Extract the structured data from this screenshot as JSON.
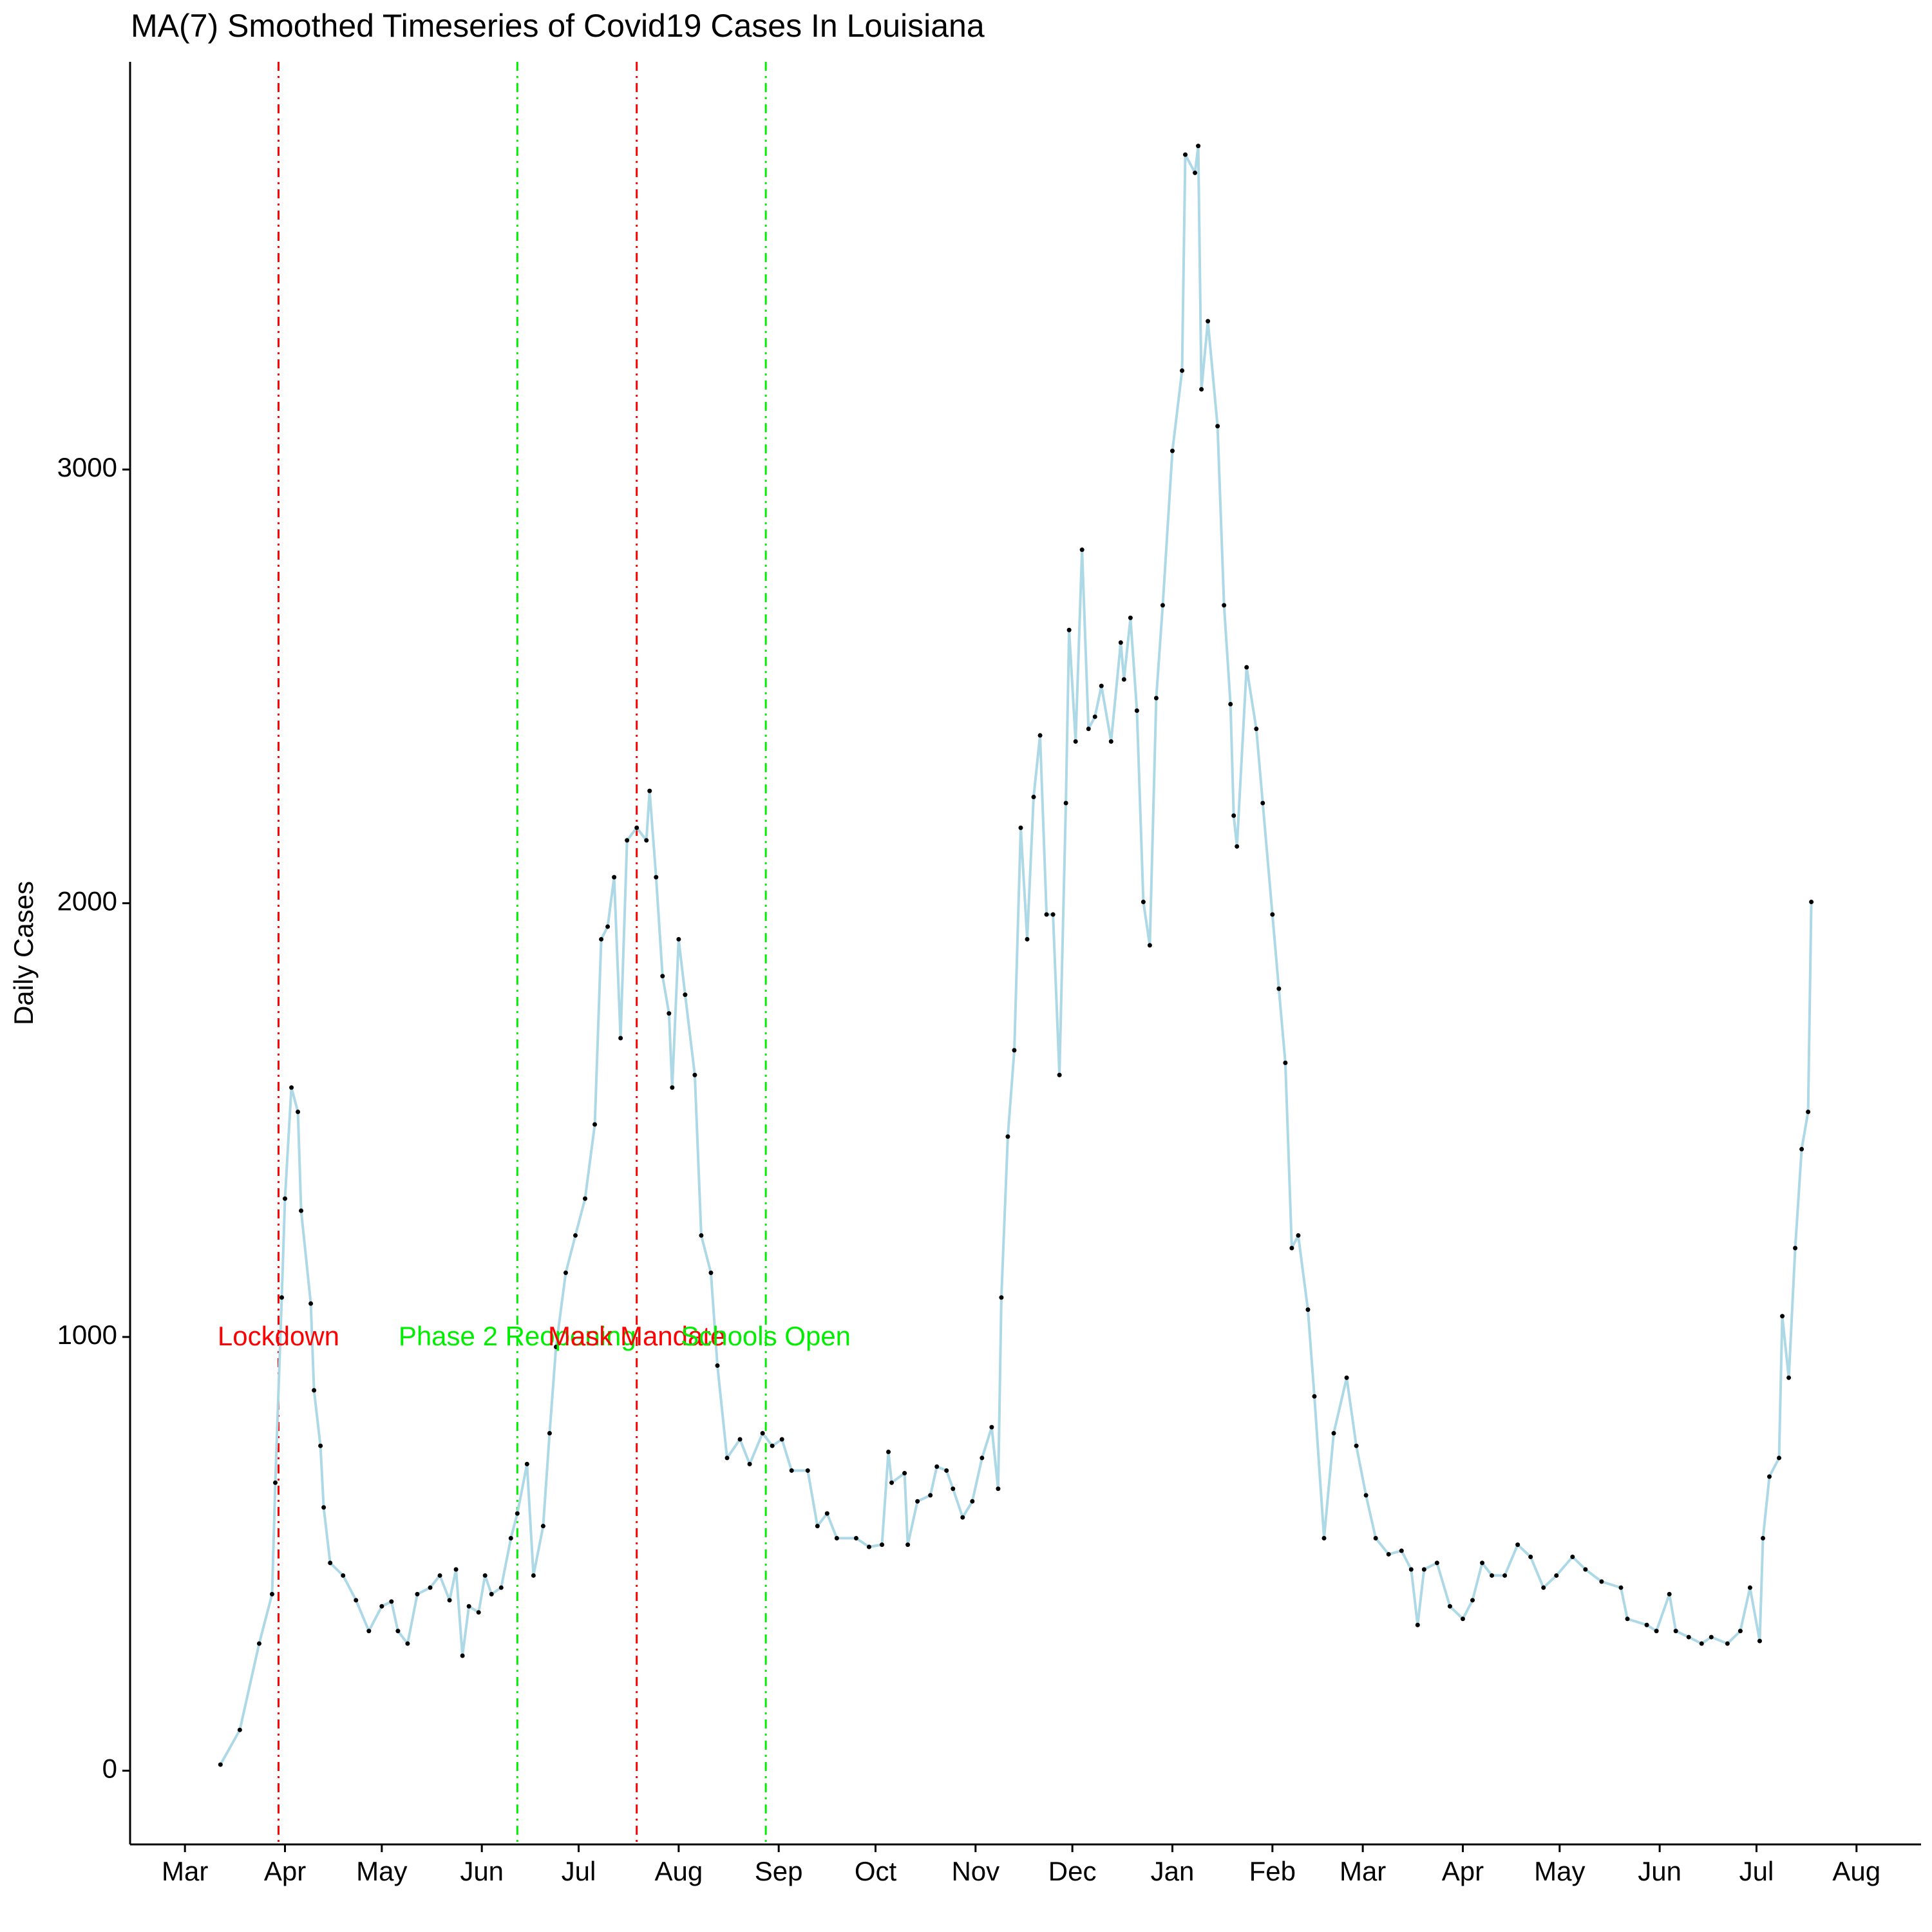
{
  "chart_data": {
    "type": "line",
    "title": "MA(7) Smoothed Timeseries of Covid19 Cases In Louisiana",
    "y_label": "Daily Cases",
    "xlim": [
      -28,
      527
    ],
    "ylim": [
      -170,
      3940
    ],
    "yticks": [
      0,
      1000,
      2000,
      3000
    ],
    "xticks": [
      {
        "value": -11,
        "label": "Mar"
      },
      {
        "value": 20,
        "label": "Apr"
      },
      {
        "value": 50,
        "label": "May"
      },
      {
        "value": 81,
        "label": "Jun"
      },
      {
        "value": 111,
        "label": "Jul"
      },
      {
        "value": 142,
        "label": "Aug"
      },
      {
        "value": 173,
        "label": "Sep"
      },
      {
        "value": 203,
        "label": "Oct"
      },
      {
        "value": 234,
        "label": "Nov"
      },
      {
        "value": 264,
        "label": "Dec"
      },
      {
        "value": 295,
        "label": "Jan"
      },
      {
        "value": 326,
        "label": "Feb"
      },
      {
        "value": 354,
        "label": "Mar"
      },
      {
        "value": 385,
        "label": "Apr"
      },
      {
        "value": 415,
        "label": "May"
      },
      {
        "value": 446,
        "label": "Jun"
      },
      {
        "value": 476,
        "label": "Jul"
      },
      {
        "value": 507,
        "label": "Aug"
      }
    ],
    "events": [
      {
        "x": 18,
        "label": "Lockdown",
        "color": "#ff0000"
      },
      {
        "x": 92,
        "label": "Phase 2 Reopening",
        "color": "#00ee00"
      },
      {
        "x": 129,
        "label": "Mask Mandate",
        "color": "#ff0000"
      },
      {
        "x": 169,
        "label": "Schools Open",
        "color": "#00ee00"
      }
    ],
    "series": [
      {
        "color": "#add8e6",
        "marker_color": "#000000",
        "x": [
          0,
          6,
          12,
          16,
          17,
          19,
          20,
          22,
          24,
          25,
          28,
          29,
          31,
          32,
          34,
          38,
          42,
          46,
          50,
          53,
          55,
          58,
          61,
          65,
          68,
          71,
          73,
          75,
          77,
          80,
          82,
          84,
          87,
          90,
          92,
          95,
          97,
          100,
          102,
          104,
          107,
          110,
          113,
          116,
          118,
          120,
          122,
          124,
          126,
          129,
          132,
          133,
          135,
          137,
          139,
          140,
          142,
          144,
          147,
          149,
          152,
          154,
          157,
          161,
          164,
          168,
          171,
          174,
          177,
          182,
          185,
          188,
          191,
          197,
          201,
          205,
          207,
          208,
          212,
          213,
          216,
          220,
          222,
          225,
          227,
          230,
          233,
          236,
          239,
          241,
          242,
          244,
          246,
          248,
          250,
          252,
          254,
          256,
          258,
          260,
          262,
          263,
          265,
          267,
          269,
          271,
          273,
          276,
          279,
          280,
          282,
          284,
          286,
          288,
          290,
          292,
          295,
          298,
          299,
          302,
          303,
          304,
          306,
          309,
          311,
          313,
          314,
          315,
          318,
          321,
          323,
          326,
          328,
          330,
          332,
          334,
          337,
          339,
          342,
          345,
          349,
          352,
          355,
          358,
          362,
          366,
          369,
          371,
          373,
          377,
          381,
          385,
          388,
          391,
          394,
          398,
          402,
          406,
          410,
          414,
          419,
          423,
          428,
          434,
          436,
          442,
          445,
          449,
          451,
          455,
          459,
          462,
          467,
          471,
          474,
          477,
          478,
          480,
          483,
          484,
          486,
          488,
          490,
          492,
          493
        ],
        "values": [
          14,
          94,
          293,
          407,
          664,
          1091,
          1319,
          1575,
          1519,
          1291,
          1077,
          877,
          749,
          607,
          479,
          450,
          393,
          322,
          379,
          390,
          322,
          293,
          407,
          422,
          450,
          393,
          464,
          265,
          379,
          365,
          450,
          407,
          422,
          536,
          593,
          707,
          450,
          564,
          778,
          977,
          1148,
          1234,
          1319,
          1490,
          1917,
          1946,
          2060,
          1689,
          2145,
          2174,
          2145,
          2259,
          2060,
          1832,
          1746,
          1575,
          1917,
          1789,
          1604,
          1234,
          1148,
          934,
          721,
          764,
          707,
          778,
          749,
          764,
          692,
          692,
          564,
          593,
          536,
          536,
          516,
          521,
          735,
          664,
          686,
          521,
          621,
          635,
          701,
          692,
          650,
          584,
          621,
          721,
          792,
          650,
          1091,
          1462,
          1661,
          2174,
          1917,
          2245,
          2387,
          1974,
          1974,
          1604,
          2231,
          2630,
          2373,
          2815,
          2402,
          2430,
          2501,
          2373,
          2601,
          2516,
          2658,
          2444,
          2003,
          1903,
          2473,
          2687,
          3043,
          3228,
          3726,
          3684,
          3746,
          3185,
          3342,
          3100,
          2687,
          2459,
          2202,
          2131,
          2544,
          2402,
          2231,
          1974,
          1803,
          1632,
          1205,
          1234,
          1063,
          863,
          536,
          778,
          906,
          749,
          635,
          536,
          499,
          507,
          464,
          336,
          464,
          479,
          379,
          350,
          393,
          479,
          450,
          450,
          521,
          493,
          422,
          450,
          493,
          464,
          436,
          422,
          350,
          336,
          322,
          407,
          322,
          308,
          293,
          308,
          293,
          322,
          422,
          299,
          536,
          678,
          721,
          1048,
          906,
          1205,
          1433,
          1519,
          2003
        ]
      }
    ]
  }
}
